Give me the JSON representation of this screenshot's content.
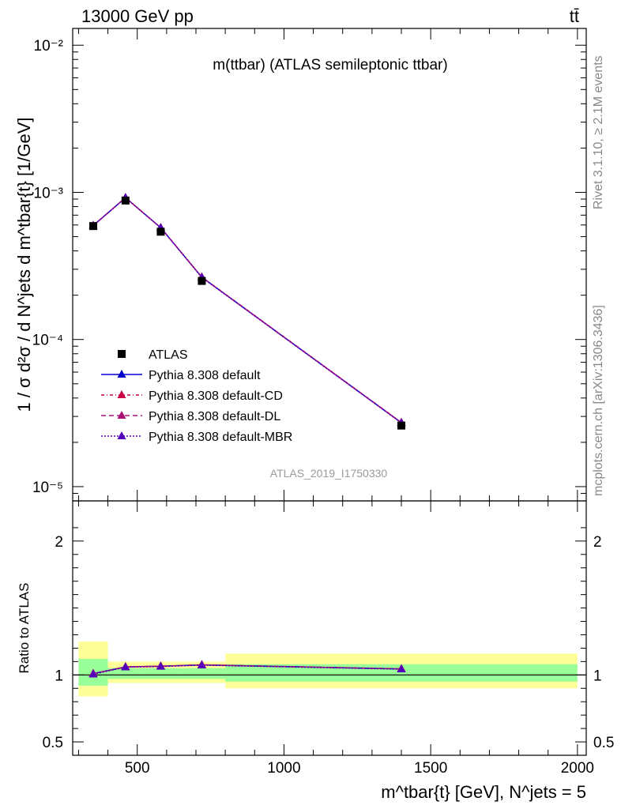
{
  "header": {
    "left": "13000 GeV pp",
    "right": "tt̄"
  },
  "side_labels": {
    "rivet": "Rivet 3.1.10, ≥ 2.1M events",
    "mcplots": "mcplots.cern.ch [arXiv:1306.3436]"
  },
  "chart_data": [
    {
      "type": "line",
      "panel": "main",
      "title": "m(ttbar) (ATLAS semileptonic ttbar)",
      "watermark": "ATLAS_2019_I1750330",
      "ylabel": "1 / σ d²σ / d N^jets d m^tbar{t} [1/GeV]",
      "yscale": "log",
      "ylim": [
        8e-06,
        0.013
      ],
      "xlim": [
        280,
        2030
      ],
      "x_ticks": [
        500,
        1000,
        1500,
        2000
      ],
      "y_ticks": [
        {
          "v": 1e-05,
          "label": "10⁻⁵"
        },
        {
          "v": 0.0001,
          "label": "10⁻⁴"
        },
        {
          "v": 0.001,
          "label": "10⁻³"
        },
        {
          "v": 0.01,
          "label": "10⁻²"
        }
      ],
      "legend_position": "lower-left",
      "data": {
        "name": "ATLAS",
        "points": [
          {
            "x": 350,
            "xlo": 300,
            "xhi": 400,
            "y": 0.00059
          },
          {
            "x": 460,
            "xlo": 400,
            "xhi": 520,
            "y": 0.00088
          },
          {
            "x": 580,
            "xlo": 520,
            "xhi": 640,
            "y": 0.00054
          },
          {
            "x": 720,
            "xlo": 640,
            "xhi": 800,
            "y": 0.00025
          },
          {
            "x": 1400,
            "xlo": 800,
            "xhi": 2000,
            "y": 2.6e-05
          }
        ]
      },
      "series": [
        {
          "name": "Pythia 8.308 default",
          "color": "#0000cc",
          "dash": "",
          "x": [
            350,
            460,
            580,
            720,
            1400
          ],
          "y": [
            0.000595,
            0.00092,
            0.000575,
            0.000265,
            2.72e-05
          ]
        },
        {
          "name": "Pythia 8.308 default-CD",
          "color": "#cc0044",
          "dash": "4,3,1,3",
          "x": [
            350,
            460,
            580,
            720,
            1400
          ],
          "y": [
            0.000596,
            0.00092,
            0.000576,
            0.000266,
            2.73e-05
          ]
        },
        {
          "name": "Pythia 8.308 default-DL",
          "color": "#aa1177",
          "dash": "6,4",
          "x": [
            350,
            460,
            580,
            720,
            1400
          ],
          "y": [
            0.000595,
            0.000919,
            0.000575,
            0.000265,
            2.72e-05
          ]
        },
        {
          "name": "Pythia 8.308 default-MBR",
          "color": "#5500bb",
          "dash": "2,2",
          "x": [
            350,
            460,
            580,
            720,
            1400
          ],
          "y": [
            0.000594,
            0.000918,
            0.000574,
            0.000264,
            2.71e-05
          ]
        }
      ]
    },
    {
      "type": "line",
      "panel": "ratio",
      "ylabel": "Ratio to ATLAS",
      "xlabel": "m^tbar{t} [GeV], N^jets = 5",
      "ylim": [
        0.4,
        2.3
      ],
      "xlim": [
        280,
        2030
      ],
      "x_ticks": [
        {
          "v": 500,
          "label": "500"
        },
        {
          "v": 1000,
          "label": "1000"
        },
        {
          "v": 1500,
          "label": "1500"
        },
        {
          "v": 2000,
          "label": "2000"
        }
      ],
      "y_ticks": [
        {
          "v": 0.5,
          "label": "0.5"
        },
        {
          "v": 1,
          "label": "1"
        },
        {
          "v": 2,
          "label": "2"
        }
      ],
      "bands": [
        {
          "xlo": 300,
          "xhi": 400,
          "inner": [
            0.92,
            1.12
          ],
          "outer": [
            0.84,
            1.25
          ]
        },
        {
          "xlo": 400,
          "xhi": 520,
          "inner": [
            0.97,
            1.05
          ],
          "outer": [
            0.94,
            1.1
          ]
        },
        {
          "xlo": 520,
          "xhi": 640,
          "inner": [
            0.97,
            1.05
          ],
          "outer": [
            0.94,
            1.1
          ]
        },
        {
          "xlo": 640,
          "xhi": 800,
          "inner": [
            0.97,
            1.05
          ],
          "outer": [
            0.94,
            1.1
          ]
        },
        {
          "xlo": 800,
          "xhi": 2000,
          "inner": [
            0.95,
            1.08
          ],
          "outer": [
            0.9,
            1.16
          ]
        }
      ],
      "series": [
        {
          "name": "Pythia 8.308 default",
          "color": "#0000cc",
          "dash": "",
          "x": [
            350,
            460,
            580,
            720,
            1400
          ],
          "y": [
            1.01,
            1.06,
            1.065,
            1.075,
            1.045
          ]
        },
        {
          "name": "Pythia 8.308 default-CD",
          "color": "#cc0044",
          "dash": "4,3,1,3",
          "x": [
            350,
            460,
            580,
            720,
            1400
          ],
          "y": [
            1.01,
            1.06,
            1.066,
            1.076,
            1.046
          ]
        },
        {
          "name": "Pythia 8.308 default-DL",
          "color": "#aa1177",
          "dash": "6,4",
          "x": [
            350,
            460,
            580,
            720,
            1400
          ],
          "y": [
            1.01,
            1.06,
            1.065,
            1.075,
            1.045
          ]
        },
        {
          "name": "Pythia 8.308 default-MBR",
          "color": "#5500bb",
          "dash": "2,2",
          "x": [
            350,
            460,
            580,
            720,
            1400
          ],
          "y": [
            1.005,
            1.058,
            1.063,
            1.073,
            1.043
          ]
        }
      ]
    }
  ]
}
